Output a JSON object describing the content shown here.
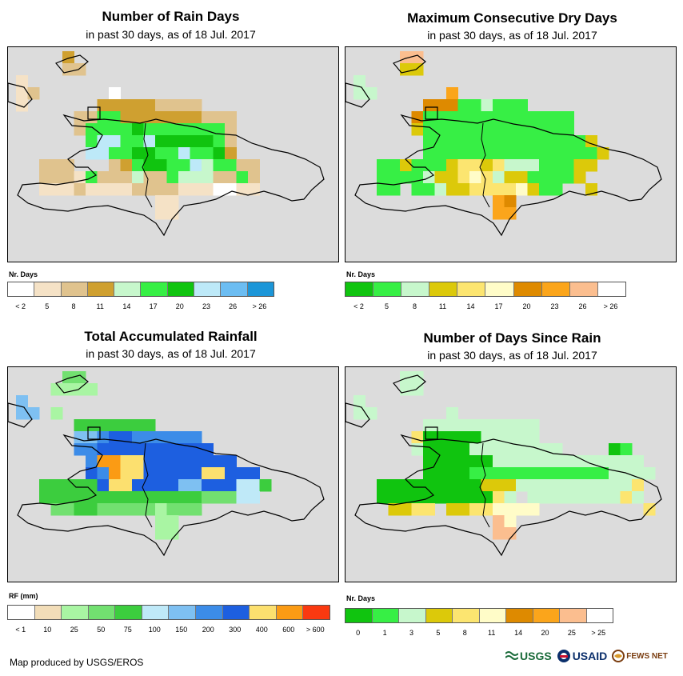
{
  "footer": "Map produced by USGS/EROS",
  "logos": {
    "usgs": "USGS",
    "usaid": "USAID",
    "fews": "FEWS NET"
  },
  "panels": [
    {
      "id": "rain-days",
      "title": "Number of Rain Days",
      "subtitle": "in past 30 days, as of 18 Jul. 2017",
      "legend_title": "Nr. Days",
      "legend_colors": [
        "#ffffff",
        "#f5e2c6",
        "#e0c38e",
        "#cfa030",
        "#c7f7cc",
        "#37ef45",
        "#10c40f",
        "#bde9f8",
        "#6cbdf2",
        "#1c96d8"
      ],
      "legend_labels": [
        "< 2",
        "5",
        "8",
        "11",
        "14",
        "17",
        "20",
        "23",
        "26",
        "> 26"
      ]
    },
    {
      "id": "dry-days",
      "title": "Maximum Consecutive Dry Days",
      "subtitle": "in past 30 days, as of 18 Jul. 2017",
      "legend_title": "Nr. Days",
      "legend_colors": [
        "#10c40f",
        "#37ef45",
        "#c7f7cc",
        "#dcc90a",
        "#fce570",
        "#fffcc8",
        "#de8a00",
        "#fba51b",
        "#fbbe8f",
        "#ffffff"
      ],
      "legend_labels": [
        "< 2",
        "5",
        "8",
        "11",
        "14",
        "17",
        "20",
        "23",
        "26",
        "> 26"
      ]
    },
    {
      "id": "rainfall",
      "title": "Total Accumulated Rainfall",
      "subtitle": "in past 30 days, as of 18 Jul. 2017",
      "legend_title": "RF (mm)",
      "legend_colors": [
        "#ffffff",
        "#f2ddb8",
        "#a9f5a3",
        "#72e070",
        "#3ccd3e",
        "#bfe9f8",
        "#7ec0f2",
        "#3c8ce8",
        "#1d5fe0",
        "#fce06f",
        "#fb9b14",
        "#fa3910"
      ],
      "legend_labels": [
        "< 1",
        "10",
        "25",
        "50",
        "75",
        "100",
        "150",
        "200",
        "300",
        "400",
        "600",
        "> 600"
      ]
    },
    {
      "id": "days-since-rain",
      "title": "Number of Days Since Rain",
      "subtitle": "in past 30 days, as of 18 Jul. 2017",
      "legend_title": "Nr. Days",
      "legend_colors": [
        "#10c40f",
        "#37ef45",
        "#c7f7cc",
        "#dcc90a",
        "#fce570",
        "#fffcc8",
        "#de8a00",
        "#fba51b",
        "#fbbe8f",
        "#ffffff"
      ],
      "legend_labels": [
        "0",
        "1",
        "3",
        "5",
        "8",
        "11",
        "14",
        "20",
        "25",
        "> 25"
      ]
    }
  ]
}
